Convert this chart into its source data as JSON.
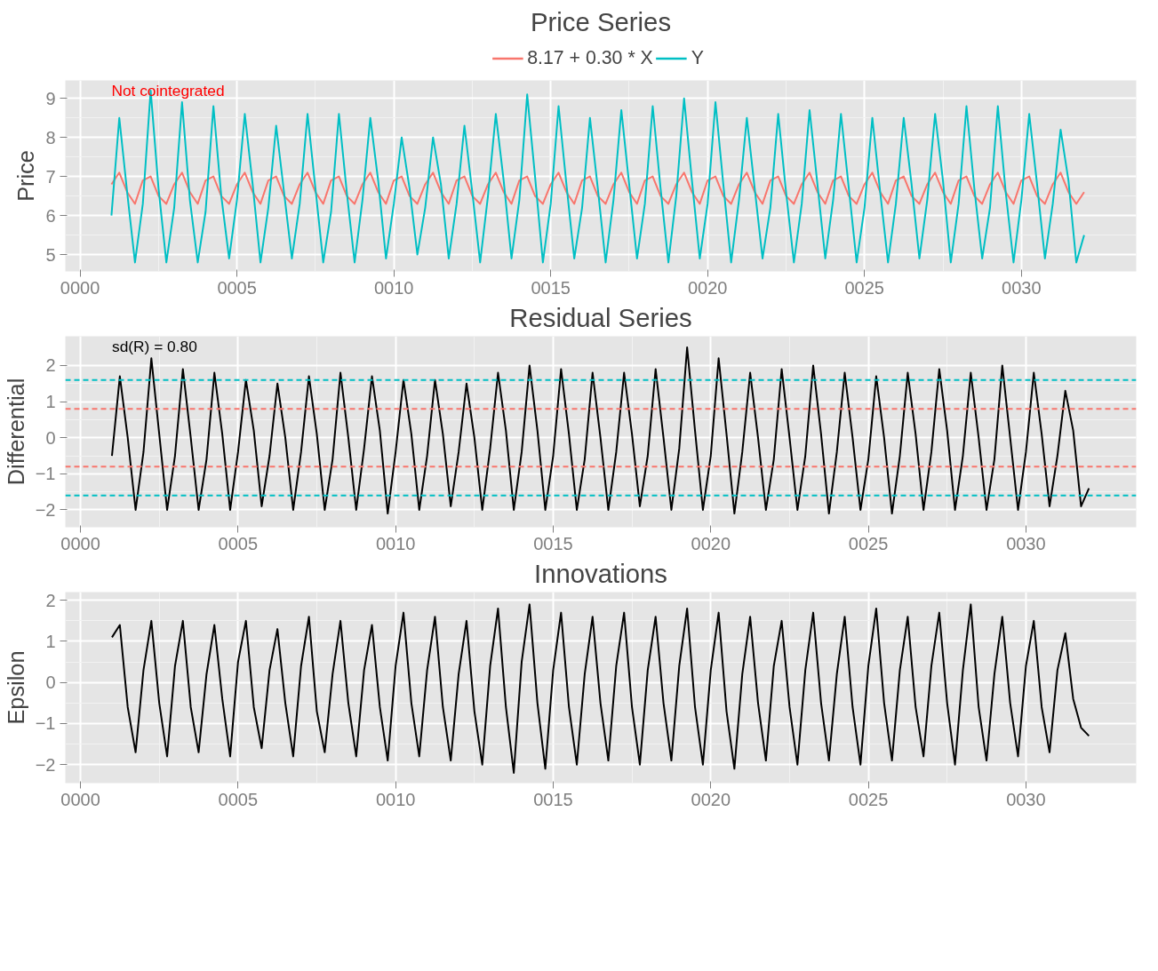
{
  "chart_data": [
    {
      "type": "line",
      "title": "Price Series",
      "ylabel": "Price",
      "legend": "top",
      "grid": true,
      "annotations": [
        "Not cointegrated"
      ],
      "xlim": [
        -0.47,
        33.66
      ],
      "ylim": [
        4.57,
        9.46
      ],
      "xticks": [
        {
          "value": 0,
          "label": "0000"
        },
        {
          "value": 5,
          "label": "0005"
        },
        {
          "value": 10,
          "label": "0010"
        },
        {
          "value": 15,
          "label": "0015"
        },
        {
          "value": 20,
          "label": "0020"
        },
        {
          "value": 25,
          "label": "0025"
        },
        {
          "value": 30,
          "label": "0030"
        }
      ],
      "yticks": [
        5,
        6,
        7,
        8,
        9
      ],
      "x": [
        1,
        1.25,
        1.5,
        1.75,
        2,
        2.25,
        2.5,
        2.75,
        3,
        3.25,
        3.5,
        3.75,
        4,
        4.25,
        4.5,
        4.75,
        5,
        5.25,
        5.5,
        5.75,
        6,
        6.25,
        6.5,
        6.75,
        7,
        7.25,
        7.5,
        7.75,
        8,
        8.25,
        8.5,
        8.75,
        9,
        9.25,
        9.5,
        9.75,
        10,
        10.25,
        10.5,
        10.75,
        11,
        11.25,
        11.5,
        11.75,
        12,
        12.25,
        12.5,
        12.75,
        13,
        13.25,
        13.5,
        13.75,
        14,
        14.25,
        14.5,
        14.75,
        15,
        15.25,
        15.5,
        15.75,
        16,
        16.25,
        16.5,
        16.75,
        17,
        17.25,
        17.5,
        17.75,
        18,
        18.25,
        18.5,
        18.75,
        19,
        19.25,
        19.5,
        19.75,
        20,
        20.25,
        20.5,
        20.75,
        21,
        21.25,
        21.5,
        21.75,
        22,
        22.25,
        22.5,
        22.75,
        23,
        23.25,
        23.5,
        23.75,
        24,
        24.25,
        24.5,
        24.75,
        25,
        25.25,
        25.5,
        25.75,
        26,
        26.25,
        26.5,
        26.75,
        27,
        27.25,
        27.5,
        27.75,
        28,
        28.25,
        28.5,
        28.75,
        29,
        29.25,
        29.5,
        29.75,
        30,
        30.25,
        30.5,
        30.75,
        31,
        31.25,
        31.5,
        31.75,
        32
      ],
      "series": [
        {
          "name": "8.17 + 0.30 * X",
          "color": "#f8766d",
          "values": [
            6.8,
            7.1,
            6.6,
            6.3,
            6.9,
            7.0,
            6.5,
            6.3,
            6.8,
            7.1,
            6.6,
            6.3,
            6.9,
            7.0,
            6.5,
            6.3,
            6.8,
            7.1,
            6.6,
            6.3,
            6.9,
            7.0,
            6.5,
            6.3,
            6.8,
            7.1,
            6.6,
            6.3,
            6.9,
            7.0,
            6.5,
            6.3,
            6.8,
            7.1,
            6.6,
            6.3,
            6.9,
            7.0,
            6.5,
            6.3,
            6.8,
            7.1,
            6.6,
            6.3,
            6.9,
            7.0,
            6.5,
            6.3,
            6.8,
            7.1,
            6.6,
            6.3,
            6.9,
            7.0,
            6.5,
            6.3,
            6.8,
            7.1,
            6.6,
            6.3,
            6.9,
            7.0,
            6.5,
            6.3,
            6.8,
            7.1,
            6.6,
            6.3,
            6.9,
            7.0,
            6.5,
            6.3,
            6.8,
            7.1,
            6.6,
            6.3,
            6.9,
            7.0,
            6.5,
            6.3,
            6.8,
            7.1,
            6.6,
            6.3,
            6.9,
            7.0,
            6.5,
            6.3,
            6.8,
            7.1,
            6.6,
            6.3,
            6.9,
            7.0,
            6.5,
            6.3,
            6.8,
            7.1,
            6.6,
            6.3,
            6.9,
            7.0,
            6.5,
            6.3,
            6.8,
            7.1,
            6.6,
            6.3,
            6.9,
            7.0,
            6.5,
            6.3,
            6.8,
            7.1,
            6.6,
            6.3,
            6.9,
            7.0,
            6.5,
            6.3,
            6.8,
            7.1,
            6.6,
            6.3,
            6.6
          ]
        },
        {
          "name": "Y",
          "color": "#00bfc4",
          "values": [
            6.0,
            8.5,
            6.6,
            4.8,
            6.3,
            9.2,
            6.7,
            4.8,
            6.2,
            8.9,
            6.4,
            4.8,
            6.1,
            8.8,
            6.5,
            4.9,
            6.4,
            8.6,
            6.8,
            4.8,
            6.2,
            8.3,
            6.6,
            4.9,
            6.3,
            8.6,
            6.7,
            4.8,
            6.1,
            8.6,
            6.6,
            4.8,
            6.4,
            8.5,
            6.9,
            4.9,
            6.3,
            8.0,
            6.7,
            5.0,
            6.2,
            8.0,
            6.8,
            4.9,
            6.3,
            8.3,
            6.6,
            4.8,
            6.5,
            8.6,
            6.9,
            4.9,
            6.4,
            9.1,
            7.0,
            4.8,
            6.3,
            8.8,
            6.8,
            4.9,
            6.2,
            8.5,
            6.7,
            4.8,
            6.4,
            8.7,
            6.8,
            4.9,
            6.3,
            8.8,
            6.7,
            4.8,
            6.5,
            9.0,
            6.9,
            4.9,
            6.3,
            8.9,
            6.8,
            4.8,
            6.4,
            8.5,
            6.7,
            4.9,
            6.2,
            8.6,
            6.6,
            4.8,
            6.3,
            8.7,
            6.8,
            4.9,
            6.4,
            8.6,
            6.7,
            4.8,
            6.2,
            8.5,
            6.6,
            4.8,
            6.3,
            8.5,
            6.8,
            4.9,
            6.4,
            8.6,
            6.9,
            4.8,
            6.3,
            8.8,
            6.7,
            4.9,
            6.2,
            8.8,
            6.6,
            4.8,
            6.4,
            8.6,
            6.8,
            4.9,
            6.3,
            8.2,
            6.9,
            4.8,
            5.5
          ]
        }
      ]
    },
    {
      "type": "line",
      "title": "Residual Series",
      "ylabel": "Differential",
      "grid": true,
      "annotations": [
        "sd(R) = 0.80"
      ],
      "xlim": [
        -0.48,
        33.5
      ],
      "ylim": [
        -2.48,
        2.81
      ],
      "xticks": [
        {
          "value": 0,
          "label": "0000"
        },
        {
          "value": 5,
          "label": "0005"
        },
        {
          "value": 10,
          "label": "0010"
        },
        {
          "value": 15,
          "label": "0015"
        },
        {
          "value": 20,
          "label": "0020"
        },
        {
          "value": 25,
          "label": "0025"
        },
        {
          "value": 30,
          "label": "0030"
        }
      ],
      "yticks": [
        -2,
        -1,
        0,
        1,
        2
      ],
      "ref_lines": [
        {
          "axis": "y",
          "value": 0.8,
          "color": "#f8766d",
          "line_style": "dashed"
        },
        {
          "axis": "y",
          "value": -0.8,
          "color": "#f8766d",
          "line_style": "dashed"
        },
        {
          "axis": "y",
          "value": 1.6,
          "color": "#00bfc4",
          "line_style": "dashed"
        },
        {
          "axis": "y",
          "value": -1.6,
          "color": "#00bfc4",
          "line_style": "dashed"
        }
      ],
      "x": [
        1,
        1.25,
        1.5,
        1.75,
        2,
        2.25,
        2.5,
        2.75,
        3,
        3.25,
        3.5,
        3.75,
        4,
        4.25,
        4.5,
        4.75,
        5,
        5.25,
        5.5,
        5.75,
        6,
        6.25,
        6.5,
        6.75,
        7,
        7.25,
        7.5,
        7.75,
        8,
        8.25,
        8.5,
        8.75,
        9,
        9.25,
        9.5,
        9.75,
        10,
        10.25,
        10.5,
        10.75,
        11,
        11.25,
        11.5,
        11.75,
        12,
        12.25,
        12.5,
        12.75,
        13,
        13.25,
        13.5,
        13.75,
        14,
        14.25,
        14.5,
        14.75,
        15,
        15.25,
        15.5,
        15.75,
        16,
        16.25,
        16.5,
        16.75,
        17,
        17.25,
        17.5,
        17.75,
        18,
        18.25,
        18.5,
        18.75,
        19,
        19.25,
        19.5,
        19.75,
        20,
        20.25,
        20.5,
        20.75,
        21,
        21.25,
        21.5,
        21.75,
        22,
        22.25,
        22.5,
        22.75,
        23,
        23.25,
        23.5,
        23.75,
        24,
        24.25,
        24.5,
        24.75,
        25,
        25.25,
        25.5,
        25.75,
        26,
        26.25,
        26.5,
        26.75,
        27,
        27.25,
        27.5,
        27.75,
        28,
        28.25,
        28.5,
        28.75,
        29,
        29.25,
        29.5,
        29.75,
        30,
        30.25,
        30.5,
        30.75,
        31,
        31.25,
        31.5,
        31.75,
        32
      ],
      "series": [
        {
          "color": "#000000",
          "values": [
            -0.5,
            1.7,
            0.0,
            -2.0,
            -0.4,
            2.2,
            0.1,
            -2.0,
            -0.5,
            1.9,
            0.0,
            -2.0,
            -0.6,
            1.8,
            0.1,
            -2.0,
            -0.4,
            1.6,
            0.2,
            -1.9,
            -0.5,
            1.5,
            0.0,
            -2.0,
            -0.4,
            1.7,
            0.1,
            -2.0,
            -0.6,
            1.8,
            0.0,
            -2.0,
            -0.3,
            1.7,
            0.2,
            -2.1,
            -0.4,
            1.6,
            0.1,
            -2.0,
            -0.5,
            1.6,
            0.1,
            -1.9,
            -0.4,
            1.5,
            0.0,
            -2.0,
            -0.3,
            1.8,
            0.2,
            -2.0,
            -0.4,
            2.0,
            0.2,
            -2.0,
            -0.5,
            1.9,
            0.1,
            -2.0,
            -0.6,
            1.8,
            0.0,
            -2.0,
            -0.4,
            1.8,
            0.1,
            -1.9,
            -0.5,
            1.9,
            0.0,
            -2.0,
            -0.3,
            2.5,
            0.2,
            -2.0,
            -0.5,
            2.2,
            0.1,
            -2.1,
            -0.4,
            1.8,
            0.0,
            -2.0,
            -0.6,
            1.9,
            0.0,
            -2.0,
            -0.5,
            2.0,
            0.1,
            -2.1,
            -0.4,
            1.8,
            0.0,
            -2.0,
            -0.6,
            1.7,
            0.0,
            -2.1,
            -0.5,
            1.8,
            0.1,
            -2.0,
            -0.4,
            1.9,
            0.2,
            -2.0,
            -0.5,
            1.8,
            0.0,
            -2.0,
            -0.6,
            2.0,
            0.0,
            -2.0,
            -0.4,
            1.8,
            0.1,
            -1.9,
            -0.5,
            1.3,
            0.2,
            -1.9,
            -1.4
          ]
        }
      ]
    },
    {
      "type": "line",
      "title": "Innovations",
      "ylabel": "Epsilon",
      "grid": true,
      "xlim": [
        -0.48,
        33.5
      ],
      "ylim": [
        -2.45,
        2.2
      ],
      "xticks": [
        {
          "value": 0,
          "label": "0000"
        },
        {
          "value": 5,
          "label": "0005"
        },
        {
          "value": 10,
          "label": "0010"
        },
        {
          "value": 15,
          "label": "0015"
        },
        {
          "value": 20,
          "label": "0020"
        },
        {
          "value": 25,
          "label": "0025"
        },
        {
          "value": 30,
          "label": "0030"
        }
      ],
      "yticks": [
        -2,
        -1,
        0,
        1,
        2
      ],
      "x": [
        1,
        1.25,
        1.5,
        1.75,
        2,
        2.25,
        2.5,
        2.75,
        3,
        3.25,
        3.5,
        3.75,
        4,
        4.25,
        4.5,
        4.75,
        5,
        5.25,
        5.5,
        5.75,
        6,
        6.25,
        6.5,
        6.75,
        7,
        7.25,
        7.5,
        7.75,
        8,
        8.25,
        8.5,
        8.75,
        9,
        9.25,
        9.5,
        9.75,
        10,
        10.25,
        10.5,
        10.75,
        11,
        11.25,
        11.5,
        11.75,
        12,
        12.25,
        12.5,
        12.75,
        13,
        13.25,
        13.5,
        13.75,
        14,
        14.25,
        14.5,
        14.75,
        15,
        15.25,
        15.5,
        15.75,
        16,
        16.25,
        16.5,
        16.75,
        17,
        17.25,
        17.5,
        17.75,
        18,
        18.25,
        18.5,
        18.75,
        19,
        19.25,
        19.5,
        19.75,
        20,
        20.25,
        20.5,
        20.75,
        21,
        21.25,
        21.5,
        21.75,
        22,
        22.25,
        22.5,
        22.75,
        23,
        23.25,
        23.5,
        23.75,
        24,
        24.25,
        24.5,
        24.75,
        25,
        25.25,
        25.5,
        25.75,
        26,
        26.25,
        26.5,
        26.75,
        27,
        27.25,
        27.5,
        27.75,
        28,
        28.25,
        28.5,
        28.75,
        29,
        29.25,
        29.5,
        29.75,
        30,
        30.25,
        30.5,
        30.75,
        31,
        31.25,
        31.5,
        31.75,
        32
      ],
      "series": [
        {
          "color": "#000000",
          "values": [
            1.1,
            1.4,
            -0.6,
            -1.7,
            0.3,
            1.5,
            -0.5,
            -1.8,
            0.4,
            1.5,
            -0.6,
            -1.7,
            0.2,
            1.4,
            -0.4,
            -1.8,
            0.5,
            1.5,
            -0.6,
            -1.6,
            0.3,
            1.3,
            -0.5,
            -1.8,
            0.4,
            1.6,
            -0.7,
            -1.7,
            0.2,
            1.5,
            -0.5,
            -1.8,
            0.3,
            1.4,
            -0.6,
            -1.9,
            0.4,
            1.7,
            -0.5,
            -1.8,
            0.3,
            1.6,
            -0.6,
            -1.9,
            0.2,
            1.5,
            -0.7,
            -2.0,
            0.4,
            1.8,
            -0.6,
            -2.2,
            0.5,
            1.9,
            -0.5,
            -2.1,
            0.3,
            1.7,
            -0.6,
            -2.0,
            0.2,
            1.6,
            -0.5,
            -1.9,
            0.4,
            1.7,
            -0.6,
            -2.0,
            0.3,
            1.6,
            -0.5,
            -1.9,
            0.4,
            1.8,
            -0.6,
            -2.0,
            0.3,
            1.7,
            -0.7,
            -2.1,
            0.2,
            1.6,
            -0.5,
            -1.9,
            0.4,
            1.5,
            -0.6,
            -2.0,
            0.3,
            1.7,
            -0.5,
            -1.9,
            0.2,
            1.6,
            -0.6,
            -2.0,
            0.4,
            1.8,
            -0.5,
            -1.9,
            0.3,
            1.6,
            -0.6,
            -1.8,
            0.4,
            1.7,
            -0.5,
            -2.0,
            0.3,
            1.9,
            -0.6,
            -1.9,
            0.2,
            1.6,
            -0.5,
            -1.8,
            0.4,
            1.5,
            -0.6,
            -1.7,
            0.3,
            1.2,
            -0.4,
            -1.1,
            -1.3
          ]
        }
      ]
    }
  ]
}
